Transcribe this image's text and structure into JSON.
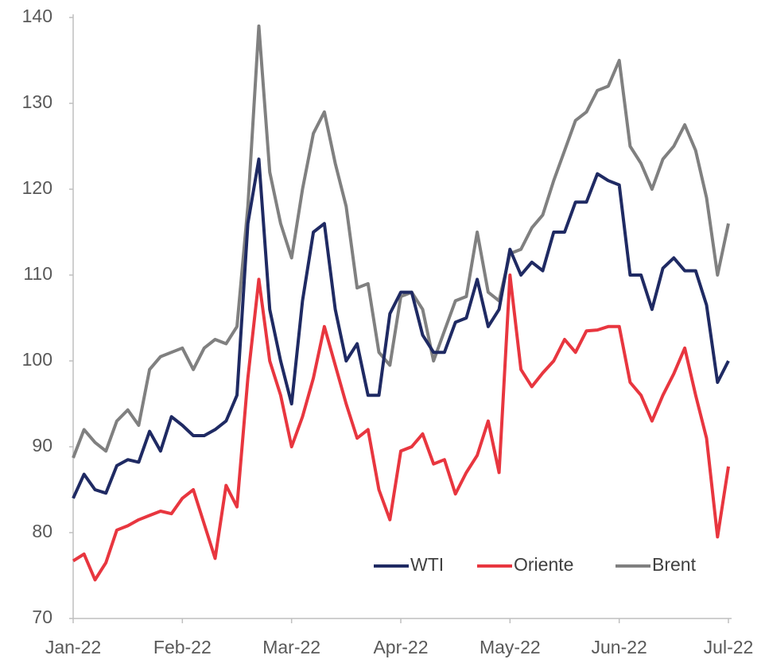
{
  "chart_data": {
    "type": "line",
    "categories": [
      "Jan-22",
      null,
      null,
      null,
      null,
      null,
      null,
      null,
      null,
      null,
      "Feb-22",
      null,
      null,
      null,
      null,
      null,
      null,
      null,
      null,
      null,
      "Mar-22",
      null,
      null,
      null,
      null,
      null,
      null,
      null,
      null,
      null,
      "Apr-22",
      null,
      null,
      null,
      null,
      null,
      null,
      null,
      null,
      null,
      "May-22",
      null,
      null,
      null,
      null,
      null,
      null,
      null,
      null,
      null,
      "Jun-22",
      null,
      null,
      null,
      null,
      null,
      null,
      null,
      null,
      null,
      "Jul-22"
    ],
    "series": [
      {
        "name": "WTI",
        "color": "#1f2a63",
        "values": [
          84,
          86.8,
          85,
          84.6,
          87.8,
          88.5,
          88.2,
          91.8,
          89.5,
          93.5,
          92.5,
          91.3,
          91.3,
          92,
          93,
          96,
          116,
          123.5,
          106,
          100,
          95,
          107,
          115,
          116,
          106,
          100,
          102,
          96,
          96,
          105.5,
          108,
          108,
          103,
          101,
          101,
          104.5,
          105,
          109.5,
          104,
          106,
          113,
          110,
          111.5,
          110.5,
          115,
          115,
          118.5,
          118.5,
          121.8,
          121,
          120.5,
          110,
          110,
          106,
          110.8,
          112,
          110.5,
          110.5,
          106.5,
          97.5,
          100
        ]
      },
      {
        "name": "Oriente",
        "color": "#e8363f",
        "values": [
          76.7,
          77.5,
          74.5,
          76.5,
          80.3,
          80.8,
          81.5,
          82,
          82.5,
          82.2,
          84,
          85,
          81,
          77,
          85.5,
          83,
          98,
          109.5,
          100,
          96,
          90,
          93.5,
          98,
          104,
          99.5,
          95,
          91,
          92,
          85,
          81.5,
          89.5,
          90,
          91.5,
          88,
          88.5,
          84.5,
          87,
          89,
          93,
          87,
          110,
          99,
          97,
          98.6,
          100,
          102.5,
          101,
          103.5,
          103.6,
          104,
          104,
          97.5,
          96,
          93,
          96,
          98.5,
          101.5,
          96,
          91,
          79.5,
          87.7
        ]
      },
      {
        "name": "Brent",
        "color": "#808080",
        "values": [
          88.7,
          92,
          90.5,
          89.5,
          93,
          94.3,
          92.5,
          99,
          100.5,
          101,
          101.5,
          99,
          101.5,
          102.5,
          102,
          104,
          118,
          139,
          122,
          116,
          112,
          120,
          126.5,
          129,
          123,
          118,
          108.5,
          109,
          101,
          99.5,
          107.5,
          108,
          106,
          100,
          103.5,
          107,
          107.5,
          115,
          108,
          107,
          112.5,
          113,
          115.5,
          117,
          121,
          124.5,
          128,
          129,
          131.5,
          132,
          135,
          125,
          123,
          120,
          123.5,
          125,
          127.5,
          124.5,
          119,
          110,
          116
        ]
      }
    ],
    "ylim": [
      70,
      140
    ],
    "yticks": [
      70,
      80,
      90,
      100,
      110,
      120,
      130,
      140
    ],
    "grid": false,
    "legend": "bottom-right"
  }
}
